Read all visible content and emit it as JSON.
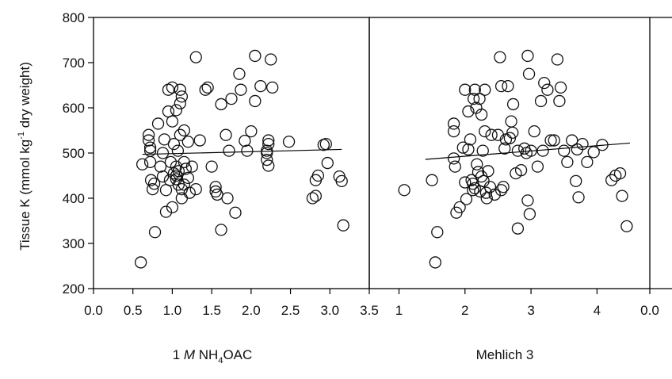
{
  "chart_data": {
    "type": "scatter",
    "ylabel": "Tissue K (mmol kg-1 dry weight)",
    "ylabel_parts": {
      "pre": "Tissue K (mmol kg",
      "sup": "-1",
      "post": " dry weight)"
    },
    "ylim": [
      200,
      800
    ],
    "yticks": [
      "200",
      "300",
      "400",
      "500",
      "600",
      "700",
      "800"
    ],
    "panels": [
      {
        "xlabel": "1 M NH4OAC",
        "xlabel_parts": {
          "lead": "1 ",
          "italic": "M",
          "mid": " NH",
          "sub": "4",
          "post": "OAC"
        },
        "xlim": [
          0,
          3.5
        ],
        "xticks": [
          "0.0",
          "0.5",
          "1.0",
          "1.5",
          "2.0",
          "2.5",
          "3.0",
          "3.5"
        ],
        "trend": [
          [
            0.62,
            497
          ],
          [
            3.15,
            508
          ]
        ],
        "points": [
          [
            0.6,
            258
          ],
          [
            0.62,
            475
          ],
          [
            0.7,
            528
          ],
          [
            0.7,
            540
          ],
          [
            0.72,
            512
          ],
          [
            0.72,
            505
          ],
          [
            0.72,
            480
          ],
          [
            0.73,
            440
          ],
          [
            0.75,
            420
          ],
          [
            0.77,
            432
          ],
          [
            0.78,
            325
          ],
          [
            0.82,
            565
          ],
          [
            0.85,
            470
          ],
          [
            0.88,
            448
          ],
          [
            0.88,
            500
          ],
          [
            0.9,
            530
          ],
          [
            0.92,
            370
          ],
          [
            0.92,
            418
          ],
          [
            0.95,
            640
          ],
          [
            0.95,
            592
          ],
          [
            0.97,
            440
          ],
          [
            0.98,
            480
          ],
          [
            1.0,
            645
          ],
          [
            1.0,
            570
          ],
          [
            1.0,
            380
          ],
          [
            1.02,
            520
          ],
          [
            1.02,
            455
          ],
          [
            1.05,
            595
          ],
          [
            1.05,
            470
          ],
          [
            1.05,
            450
          ],
          [
            1.05,
            442
          ],
          [
            1.07,
            505
          ],
          [
            1.08,
            460
          ],
          [
            1.08,
            430
          ],
          [
            1.1,
            640
          ],
          [
            1.1,
            610
          ],
          [
            1.1,
            540
          ],
          [
            1.12,
            625
          ],
          [
            1.12,
            400
          ],
          [
            1.12,
            420
          ],
          [
            1.15,
            480
          ],
          [
            1.15,
            430
          ],
          [
            1.15,
            550
          ],
          [
            1.17,
            465
          ],
          [
            1.2,
            445
          ],
          [
            1.2,
            525
          ],
          [
            1.22,
            412
          ],
          [
            1.25,
            470
          ],
          [
            1.3,
            712
          ],
          [
            1.3,
            420
          ],
          [
            1.35,
            528
          ],
          [
            1.42,
            640
          ],
          [
            1.45,
            645
          ],
          [
            1.5,
            470
          ],
          [
            1.55,
            425
          ],
          [
            1.55,
            415
          ],
          [
            1.57,
            408
          ],
          [
            1.62,
            608
          ],
          [
            1.62,
            330
          ],
          [
            1.68,
            540
          ],
          [
            1.7,
            400
          ],
          [
            1.72,
            505
          ],
          [
            1.75,
            620
          ],
          [
            1.8,
            368
          ],
          [
            1.85,
            675
          ],
          [
            1.87,
            640
          ],
          [
            1.92,
            527
          ],
          [
            1.95,
            505
          ],
          [
            2.0,
            548
          ],
          [
            2.05,
            715
          ],
          [
            2.05,
            615
          ],
          [
            2.12,
            648
          ],
          [
            2.2,
            500
          ],
          [
            2.2,
            505
          ],
          [
            2.2,
            485
          ],
          [
            2.22,
            528
          ],
          [
            2.22,
            520
          ],
          [
            2.22,
            472
          ],
          [
            2.25,
            707
          ],
          [
            2.27,
            645
          ],
          [
            2.48,
            525
          ],
          [
            2.78,
            400
          ],
          [
            2.82,
            405
          ],
          [
            2.82,
            440
          ],
          [
            2.85,
            450
          ],
          [
            2.92,
            518
          ],
          [
            2.95,
            520
          ],
          [
            2.97,
            478
          ],
          [
            3.12,
            448
          ],
          [
            3.15,
            438
          ],
          [
            3.17,
            340
          ]
        ]
      },
      {
        "xlabel": "Mehlich 3",
        "xlabel_parts": {
          "lead": "Mehlich 3",
          "italic": "",
          "mid": "",
          "sub": "",
          "post": ""
        },
        "xlim": [
          0.55,
          4.8
        ],
        "xticks": [
          "1",
          "2",
          "3",
          "4"
        ],
        "xtick_values": [
          1,
          2,
          3,
          4
        ],
        "trend": [
          [
            1.4,
            486
          ],
          [
            4.5,
            522
          ]
        ],
        "points": [
          [
            1.08,
            418
          ],
          [
            1.5,
            440
          ],
          [
            1.55,
            258
          ],
          [
            1.58,
            325
          ],
          [
            1.83,
            565
          ],
          [
            1.83,
            548
          ],
          [
            1.83,
            488
          ],
          [
            1.85,
            470
          ],
          [
            1.87,
            368
          ],
          [
            1.92,
            380
          ],
          [
            1.97,
            512
          ],
          [
            2.0,
            640
          ],
          [
            2.0,
            435
          ],
          [
            2.02,
            398
          ],
          [
            2.05,
            592
          ],
          [
            2.05,
            508
          ],
          [
            2.08,
            530
          ],
          [
            2.1,
            440
          ],
          [
            2.12,
            432
          ],
          [
            2.12,
            418
          ],
          [
            2.13,
            620
          ],
          [
            2.15,
            640
          ],
          [
            2.15,
            422
          ],
          [
            2.17,
            600
          ],
          [
            2.18,
            475
          ],
          [
            2.2,
            458
          ],
          [
            2.22,
            620
          ],
          [
            2.23,
            415
          ],
          [
            2.25,
            585
          ],
          [
            2.25,
            448
          ],
          [
            2.27,
            505
          ],
          [
            2.28,
            438
          ],
          [
            2.3,
            640
          ],
          [
            2.3,
            548
          ],
          [
            2.32,
            412
          ],
          [
            2.33,
            400
          ],
          [
            2.35,
            460
          ],
          [
            2.38,
            425
          ],
          [
            2.4,
            540
          ],
          [
            2.45,
            408
          ],
          [
            2.5,
            540
          ],
          [
            2.53,
            712
          ],
          [
            2.55,
            648
          ],
          [
            2.55,
            418
          ],
          [
            2.58,
            425
          ],
          [
            2.6,
            510
          ],
          [
            2.62,
            530
          ],
          [
            2.65,
            648
          ],
          [
            2.68,
            533
          ],
          [
            2.7,
            570
          ],
          [
            2.72,
            545
          ],
          [
            2.73,
            608
          ],
          [
            2.77,
            455
          ],
          [
            2.8,
            505
          ],
          [
            2.8,
            333
          ],
          [
            2.85,
            462
          ],
          [
            2.9,
            510
          ],
          [
            2.93,
            500
          ],
          [
            2.95,
            715
          ],
          [
            2.95,
            395
          ],
          [
            2.97,
            675
          ],
          [
            2.98,
            365
          ],
          [
            3.0,
            505
          ],
          [
            3.05,
            548
          ],
          [
            3.1,
            470
          ],
          [
            3.15,
            615
          ],
          [
            3.18,
            505
          ],
          [
            3.2,
            655
          ],
          [
            3.25,
            640
          ],
          [
            3.3,
            528
          ],
          [
            3.35,
            528
          ],
          [
            3.4,
            707
          ],
          [
            3.43,
            615
          ],
          [
            3.45,
            645
          ],
          [
            3.5,
            505
          ],
          [
            3.55,
            480
          ],
          [
            3.62,
            528
          ],
          [
            3.68,
            438
          ],
          [
            3.7,
            508
          ],
          [
            3.72,
            402
          ],
          [
            3.78,
            520
          ],
          [
            3.85,
            480
          ],
          [
            3.95,
            502
          ],
          [
            4.08,
            518
          ],
          [
            4.22,
            440
          ],
          [
            4.28,
            450
          ],
          [
            4.35,
            455
          ],
          [
            4.38,
            405
          ],
          [
            4.45,
            338
          ]
        ]
      }
    ],
    "partial_panel": {
      "xticks": [
        "0.0"
      ]
    },
    "marker": "open-circle"
  }
}
